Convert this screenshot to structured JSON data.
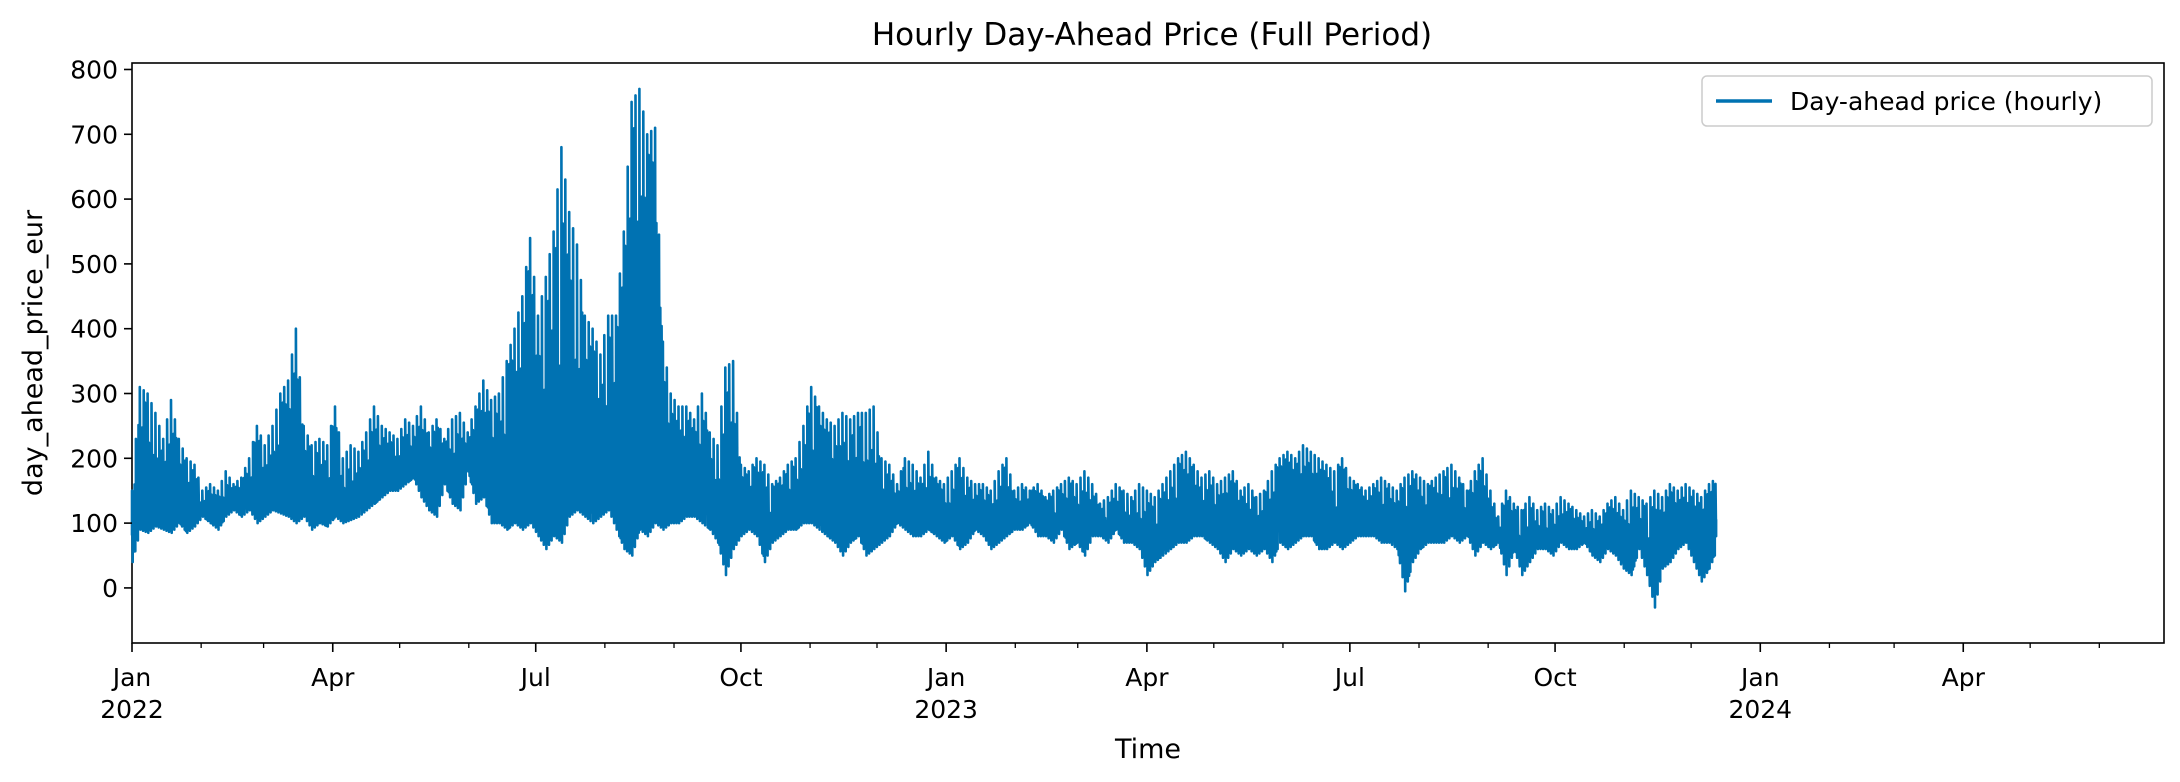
{
  "chart_data": {
    "type": "line",
    "title": "Hourly Day-Ahead Price (Full Period)",
    "xlabel": "Time",
    "ylabel": "day_ahead_price_eur",
    "x_range": [
      "2022-01-01",
      "2024-06-30"
    ],
    "ylim": [
      -85,
      810
    ],
    "y_ticks": [
      0,
      100,
      200,
      300,
      400,
      500,
      600,
      700,
      800
    ],
    "x_ticks": [
      {
        "date": "2022-01-01",
        "label": "Jan",
        "year": "2022"
      },
      {
        "date": "2022-04-01",
        "label": "Apr",
        "year": ""
      },
      {
        "date": "2022-07-01",
        "label": "Jul",
        "year": ""
      },
      {
        "date": "2022-10-01",
        "label": "Oct",
        "year": ""
      },
      {
        "date": "2023-01-01",
        "label": "Jan",
        "year": "2023"
      },
      {
        "date": "2023-04-01",
        "label": "Apr",
        "year": ""
      },
      {
        "date": "2023-07-01",
        "label": "Jul",
        "year": ""
      },
      {
        "date": "2023-10-01",
        "label": "Oct",
        "year": ""
      },
      {
        "date": "2024-01-01",
        "label": "Jan",
        "year": "2024"
      },
      {
        "date": "2024-04-01",
        "label": "Apr",
        "year": ""
      }
    ],
    "minor_ticks": [
      "2022-02-01",
      "2022-03-01",
      "2022-05-01",
      "2022-06-01",
      "2022-08-01",
      "2022-09-01",
      "2022-11-01",
      "2022-12-01",
      "2023-02-01",
      "2023-03-01",
      "2023-05-01",
      "2023-06-01",
      "2023-08-01",
      "2023-09-01",
      "2023-11-01",
      "2023-12-01",
      "2024-02-01",
      "2024-03-01",
      "2024-05-01",
      "2024-06-01"
    ],
    "grid": false,
    "legend_position": "top-right",
    "series": [
      {
        "name": "Day-ahead price (hourly)",
        "color": "#0072b2",
        "x_start": "2022-01-01",
        "step_days": 3.5,
        "low": [
          40,
          90,
          85,
          95,
          90,
          85,
          100,
          85,
          95,
          110,
          100,
          90,
          110,
          120,
          110,
          120,
          100,
          110,
          120,
          115,
          110,
          100,
          110,
          90,
          100,
          95,
          110,
          100,
          105,
          110,
          120,
          130,
          140,
          150,
          150,
          160,
          170,
          140,
          120,
          110,
          160,
          130,
          120,
          180,
          130,
          140,
          100,
          100,
          90,
          100,
          90,
          100,
          80,
          60,
          80,
          70,
          110,
          120,
          110,
          100,
          110,
          120,
          90,
          60,
          50,
          90,
          80,
          100,
          90,
          100,
          100,
          110,
          110,
          100,
          90,
          70,
          20,
          60,
          80,
          90,
          80,
          40,
          70,
          80,
          90,
          90,
          100,
          100,
          90,
          80,
          70,
          50,
          70,
          80,
          50,
          60,
          70,
          80,
          100,
          90,
          80,
          80,
          90,
          80,
          70,
          80,
          60,
          70,
          90,
          80,
          60,
          70,
          80,
          90,
          90,
          100,
          80,
          80,
          70,
          90,
          60,
          70,
          50,
          80,
          80,
          70,
          90,
          70,
          70,
          60,
          20,
          40,
          50,
          60,
          70,
          70,
          80,
          80,
          70,
          60,
          40,
          60,
          50,
          60,
          50,
          60,
          40,
          70,
          60,
          70,
          80,
          80,
          60,
          60,
          70,
          60,
          70,
          80,
          80,
          80,
          70,
          70,
          60,
          -5,
          40,
          60,
          70,
          70,
          70,
          80,
          70,
          80,
          50,
          70,
          60,
          70,
          20,
          60,
          20,
          40,
          60,
          60,
          50,
          70,
          60,
          60,
          70,
          50,
          40,
          60,
          50,
          30,
          20,
          60,
          20,
          -30,
          30,
          40,
          60,
          70,
          40,
          10,
          30,
          60
        ],
        "high": [
          150,
          310,
          300,
          270,
          230,
          290,
          230,
          200,
          190,
          150,
          160,
          150,
          180,
          160,
          170,
          200,
          250,
          220,
          250,
          300,
          320,
          400,
          250,
          220,
          230,
          220,
          280,
          200,
          220,
          210,
          240,
          280,
          250,
          240,
          230,
          260,
          250,
          280,
          240,
          260,
          230,
          260,
          270,
          240,
          280,
          320,
          290,
          300,
          350,
          400,
          450,
          540,
          420,
          480,
          550,
          680,
          580,
          530,
          420,
          400,
          360,
          420,
          420,
          550,
          750,
          770,
          700,
          710,
          380,
          300,
          280,
          280,
          260,
          300,
          240,
          220,
          340,
          350,
          190,
          180,
          200,
          190,
          160,
          170,
          190,
          200,
          250,
          310,
          280,
          260,
          250,
          270,
          260,
          270,
          270,
          280,
          200,
          190,
          160,
          200,
          190,
          170,
          210,
          170,
          160,
          180,
          200,
          170,
          160,
          160,
          150,
          180,
          200,
          150,
          160,
          150,
          160,
          140,
          150,
          160,
          170,
          160,
          180,
          160,
          130,
          140,
          160,
          150,
          140,
          160,
          150,
          140,
          160,
          180,
          200,
          210,
          190,
          170,
          180,
          160,
          170,
          180,
          150,
          160,
          140,
          150,
          180,
          200,
          210,
          200,
          220,
          210,
          200,
          190,
          180,
          200,
          170,
          160,
          150,
          160,
          170,
          160,
          150,
          170,
          180,
          170,
          160,
          170,
          180,
          190,
          170,
          150,
          180,
          200,
          150,
          110,
          150,
          130,
          120,
          140,
          120,
          130,
          120,
          140,
          130,
          120,
          110,
          120,
          110,
          130,
          140,
          120,
          150,
          140,
          130,
          150,
          140,
          160,
          150,
          160,
          150,
          140,
          160,
          170
        ]
      }
    ]
  }
}
